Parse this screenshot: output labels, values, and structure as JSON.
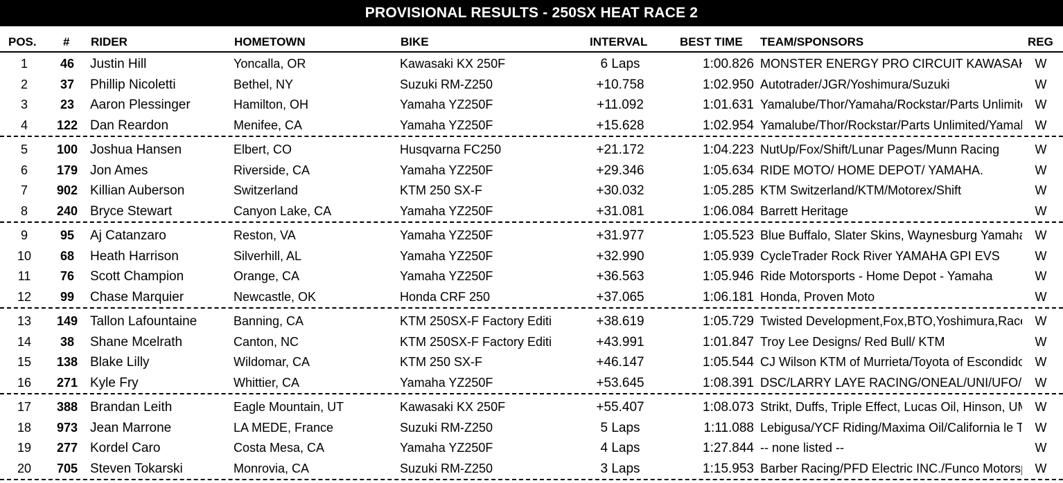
{
  "title": "PROVISIONAL RESULTS - 250SX HEAT RACE 2",
  "headers": {
    "pos": "POS.",
    "num": "#",
    "rider": "RIDER",
    "hometown": "HOMETOWN",
    "bike": "BIKE",
    "interval": "INTERVAL",
    "best_time": "BEST TIME",
    "team": "TEAM/SPONSORS",
    "reg": "REG"
  },
  "rows": [
    {
      "pos": "1",
      "num": "46",
      "rider": "Justin Hill",
      "hometown": "Yoncalla, OR",
      "bike": "Kawasaki KX 250F",
      "interval": "6 Laps",
      "best": "1:00.826",
      "team": "MONSTER ENERGY PRO CIRCUIT KAWASAKI",
      "reg": "W"
    },
    {
      "pos": "2",
      "num": "37",
      "rider": "Phillip Nicoletti",
      "hometown": "Bethel, NY",
      "bike": "Suzuki RM-Z250",
      "interval": "+10.758",
      "best": "1:02.950",
      "team": "Autotrader/JGR/Yoshimura/Suzuki",
      "reg": "W"
    },
    {
      "pos": "3",
      "num": "23",
      "rider": "Aaron Plessinger",
      "hometown": "Hamilton, OH",
      "bike": "Yamaha YZ250F",
      "interval": "+11.092",
      "best": "1:01.631",
      "team": "Yamalube/Thor/Yamaha/Rockstar/Parts Unlimitec",
      "reg": "W"
    },
    {
      "pos": "4",
      "num": "122",
      "rider": "Dan Reardon",
      "hometown": "Menifee, CA",
      "bike": "Yamaha YZ250F",
      "interval": "+15.628",
      "best": "1:02.954",
      "team": "Yamalube/Thor/Rockstar/Parts Unlimited/Yamaha",
      "reg": "W"
    },
    {
      "pos": "5",
      "num": "100",
      "rider": "Joshua Hansen",
      "hometown": "Elbert, CO",
      "bike": "Husqvarna FC250",
      "interval": "+21.172",
      "best": "1:04.223",
      "team": "NutUp/Fox/Shift/Lunar Pages/Munn Racing",
      "reg": "W"
    },
    {
      "pos": "6",
      "num": "179",
      "rider": "Jon Ames",
      "hometown": "Riverside, CA",
      "bike": "Yamaha YZ250F",
      "interval": "+29.346",
      "best": "1:05.634",
      "team": "RIDE MOTO/ HOME DEPOT/ YAMAHA.",
      "reg": "W"
    },
    {
      "pos": "7",
      "num": "902",
      "rider": "Killian Auberson",
      "hometown": "Switzerland",
      "bike": "KTM 250 SX-F",
      "interval": "+30.032",
      "best": "1:05.285",
      "team": "KTM Switzerland/KTM/Motorex/Shift",
      "reg": "W"
    },
    {
      "pos": "8",
      "num": "240",
      "rider": "Bryce Stewart",
      "hometown": "Canyon Lake, CA",
      "bike": "Yamaha YZ250F",
      "interval": "+31.081",
      "best": "1:06.084",
      "team": "Barrett Heritage",
      "reg": "W"
    },
    {
      "pos": "9",
      "num": "95",
      "rider": "Aj Catanzaro",
      "hometown": "Reston, VA",
      "bike": "Yamaha YZ250F",
      "interval": "+31.977",
      "best": "1:05.523",
      "team": "Blue Buffalo, Slater Skins, Waynesburg Yamaha,",
      "reg": "W"
    },
    {
      "pos": "10",
      "num": "68",
      "rider": "Heath Harrison",
      "hometown": "Silverhill, AL",
      "bike": "Yamaha YZ250F",
      "interval": "+32.990",
      "best": "1:05.939",
      "team": "CycleTrader Rock River YAMAHA GPI EVS",
      "reg": "W"
    },
    {
      "pos": "11",
      "num": "76",
      "rider": "Scott Champion",
      "hometown": "Orange, CA",
      "bike": "Yamaha YZ250F",
      "interval": "+36.563",
      "best": "1:05.946",
      "team": "Ride Motorsports - Home Depot - Yamaha",
      "reg": "W"
    },
    {
      "pos": "12",
      "num": "99",
      "rider": "Chase Marquier",
      "hometown": "Newcastle, OK",
      "bike": "Honda CRF 250",
      "interval": "+37.065",
      "best": "1:06.181",
      "team": "Honda, Proven Moto",
      "reg": "W"
    },
    {
      "pos": "13",
      "num": "149",
      "rider": "Tallon Lafountaine",
      "hometown": "Banning, CA",
      "bike": "KTM 250SX-F Factory Editi",
      "interval": "+38.619",
      "best": "1:05.729",
      "team": "Twisted Development,Fox,BTO,Yoshimura,Race-",
      "reg": "W"
    },
    {
      "pos": "14",
      "num": "38",
      "rider": "Shane Mcelrath",
      "hometown": "Canton, NC",
      "bike": "KTM 250SX-F Factory Editi",
      "interval": "+43.991",
      "best": "1:01.847",
      "team": "Troy Lee Designs/ Red Bull/ KTM",
      "reg": "W"
    },
    {
      "pos": "15",
      "num": "138",
      "rider": "Blake Lilly",
      "hometown": "Wildomar, CA",
      "bike": "KTM 250 SX-F",
      "interval": "+46.147",
      "best": "1:05.544",
      "team": "CJ Wilson KTM of Murrieta/Toyota of Escondido/F",
      "reg": "W"
    },
    {
      "pos": "16",
      "num": "271",
      "rider": "Kyle Fry",
      "hometown": "Whittier, CA",
      "bike": "Yamaha YZ250F",
      "interval": "+53.645",
      "best": "1:08.391",
      "team": "DSC/LARRY LAYE RACING/ONEAL/UNI/UFO/SI",
      "reg": "W"
    },
    {
      "pos": "17",
      "num": "388",
      "rider": "Brandan Leith",
      "hometown": "Eagle Mountain, UT",
      "bike": "Kawasaki KX 250F",
      "interval": "+55.407",
      "best": "1:08.073",
      "team": "Strikt, Duffs, Triple Effect, Lucas Oil, Hinson, UMC",
      "reg": "W"
    },
    {
      "pos": "18",
      "num": "973",
      "rider": "Jean Marrone",
      "hometown": "LA MEDE, France",
      "bike": "Suzuki RM-Z250",
      "interval": "5 Laps",
      "best": "1:11.088",
      "team": "Lebigusa/YCF Riding/Maxima Oil/California le Toj",
      "reg": "W"
    },
    {
      "pos": "19",
      "num": "277",
      "rider": "Kordel Caro",
      "hometown": "Costa Mesa, CA",
      "bike": "Yamaha YZ250F",
      "interval": "4 Laps",
      "best": "1:27.844",
      "team": "-- none listed --",
      "reg": "W"
    },
    {
      "pos": "20",
      "num": "705",
      "rider": "Steven Tokarski",
      "hometown": "Monrovia, CA",
      "bike": "Suzuki RM-Z250",
      "interval": "3 Laps",
      "best": "1:15.953",
      "team": "Barber Racing/PFD Electric INC./Funco Motorspo",
      "reg": "W"
    }
  ]
}
